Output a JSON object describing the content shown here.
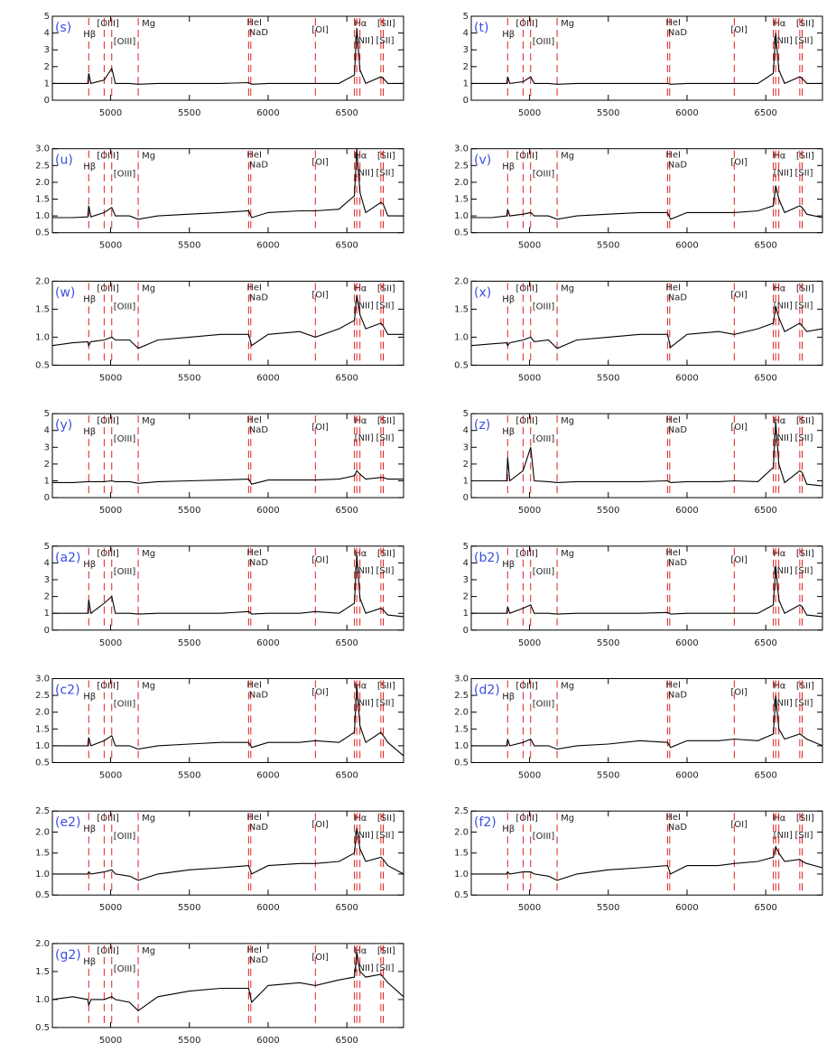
{
  "spectral_lines": [
    {
      "wavelength": 4861,
      "label": "Hβ"
    },
    {
      "wavelength": 4959,
      "label": "[OIII]"
    },
    {
      "wavelength": 5007,
      "label": "[OIII]"
    },
    {
      "wavelength": 5175,
      "label": "Mg"
    },
    {
      "wavelength": 5876,
      "label": "HeI"
    },
    {
      "wavelength": 5890,
      "label": "NaD"
    },
    {
      "wavelength": 6300,
      "label": "[OI]"
    },
    {
      "wavelength": 6548
    },
    {
      "wavelength": 6563,
      "label": "Hα"
    },
    {
      "wavelength": 6583,
      "label": "[NII]"
    },
    {
      "wavelength": 6716,
      "label": "[SII]"
    },
    {
      "wavelength": 6731,
      "label": "[SII]"
    }
  ],
  "chart_data": [
    {
      "type": "line",
      "label": "(s)",
      "xlim": [
        4630,
        6860
      ],
      "ylim": [
        0,
        5
      ],
      "xticks": [
        5000,
        5500,
        6000,
        6500
      ],
      "yticks": [
        0,
        1,
        2,
        3,
        4,
        5
      ],
      "x": [
        4630,
        4760,
        4855,
        4861,
        4875,
        4959,
        5007,
        5030,
        5120,
        5175,
        5300,
        5500,
        5700,
        5876,
        5895,
        6000,
        6200,
        6300,
        6450,
        6548,
        6563,
        6583,
        6620,
        6716,
        6731,
        6760,
        6860
      ],
      "values": [
        1.0,
        1.0,
        1.0,
        1.6,
        1.0,
        1.2,
        1.9,
        1.0,
        1.0,
        0.95,
        1.0,
        1.0,
        1.0,
        1.05,
        0.95,
        1.0,
        1.0,
        1.0,
        1.0,
        1.5,
        4.3,
        1.8,
        1.0,
        1.4,
        1.3,
        1.0,
        1.0
      ]
    },
    {
      "type": "line",
      "label": "(t)",
      "xlim": [
        4630,
        6860
      ],
      "ylim": [
        0,
        5
      ],
      "xticks": [
        5000,
        5500,
        6000,
        6500
      ],
      "yticks": [
        0,
        1,
        2,
        3,
        4,
        5
      ],
      "x": [
        4630,
        4760,
        4855,
        4861,
        4875,
        4959,
        5007,
        5030,
        5120,
        5175,
        5300,
        5500,
        5700,
        5876,
        5895,
        6000,
        6200,
        6300,
        6450,
        6548,
        6563,
        6583,
        6620,
        6716,
        6731,
        6760,
        6860
      ],
      "values": [
        1.0,
        1.0,
        1.0,
        1.4,
        1.0,
        1.1,
        1.4,
        1.0,
        1.0,
        0.95,
        1.0,
        1.0,
        1.0,
        1.0,
        0.95,
        1.0,
        1.0,
        1.0,
        1.0,
        1.6,
        4.0,
        1.8,
        1.0,
        1.4,
        1.3,
        1.0,
        1.0
      ]
    },
    {
      "type": "line",
      "label": "(u)",
      "xlim": [
        4630,
        6860
      ],
      "ylim": [
        0.5,
        3
      ],
      "xticks": [
        5000,
        5500,
        6000,
        6500
      ],
      "yticks": [
        0.5,
        {
          "value": 1,
          "label": "1.0"
        },
        1.5,
        {
          "value": 2,
          "label": "2.0"
        },
        2.5,
        {
          "value": 3,
          "label": "3.0"
        }
      ],
      "x": [
        4630,
        4760,
        4855,
        4861,
        4875,
        4959,
        5007,
        5030,
        5120,
        5175,
        5300,
        5500,
        5700,
        5876,
        5895,
        6000,
        6200,
        6300,
        6450,
        6548,
        6563,
        6583,
        6620,
        6716,
        6731,
        6760,
        6860
      ],
      "values": [
        0.95,
        0.95,
        0.97,
        1.3,
        0.97,
        1.1,
        1.25,
        1.0,
        1.0,
        0.9,
        1.0,
        1.05,
        1.1,
        1.15,
        0.95,
        1.1,
        1.15,
        1.15,
        1.2,
        1.6,
        3.0,
        1.7,
        1.1,
        1.4,
        1.35,
        1.0,
        1.0
      ]
    },
    {
      "type": "line",
      "label": "(v)",
      "xlim": [
        4630,
        6860
      ],
      "ylim": [
        0.5,
        3
      ],
      "xticks": [
        5000,
        5500,
        6000,
        6500
      ],
      "yticks": [
        0.5,
        {
          "value": 1,
          "label": "1.0"
        },
        1.5,
        {
          "value": 2,
          "label": "2.0"
        },
        2.5,
        {
          "value": 3,
          "label": "3.0"
        }
      ],
      "x": [
        4630,
        4760,
        4855,
        4861,
        4875,
        4959,
        5007,
        5030,
        5120,
        5175,
        5300,
        5500,
        5700,
        5876,
        5895,
        6000,
        6200,
        6300,
        6450,
        6548,
        6563,
        6583,
        6620,
        6716,
        6731,
        6760,
        6860
      ],
      "values": [
        0.95,
        0.95,
        1.0,
        1.2,
        1.0,
        1.05,
        1.1,
        1.0,
        1.0,
        0.9,
        1.0,
        1.05,
        1.1,
        1.1,
        0.9,
        1.1,
        1.1,
        1.1,
        1.15,
        1.3,
        1.9,
        1.5,
        1.1,
        1.3,
        1.25,
        1.05,
        0.95
      ]
    },
    {
      "type": "line",
      "label": "(w)",
      "xlim": [
        4630,
        6860
      ],
      "ylim": [
        0.5,
        2
      ],
      "xticks": [
        5000,
        5500,
        6000,
        6500
      ],
      "yticks": [
        0.5,
        {
          "value": 1,
          "label": "1.0"
        },
        1.5,
        {
          "value": 2,
          "label": "2.0"
        }
      ],
      "x": [
        4630,
        4760,
        4855,
        4861,
        4875,
        4959,
        5007,
        5030,
        5120,
        5175,
        5300,
        5500,
        5700,
        5876,
        5895,
        6000,
        6200,
        6300,
        6450,
        6548,
        6563,
        6583,
        6620,
        6716,
        6731,
        6760,
        6860
      ],
      "values": [
        0.85,
        0.9,
        0.92,
        0.85,
        0.92,
        0.95,
        1.0,
        0.95,
        0.95,
        0.8,
        0.95,
        1.0,
        1.05,
        1.05,
        0.85,
        1.05,
        1.1,
        1.0,
        1.15,
        1.3,
        1.75,
        1.4,
        1.15,
        1.25,
        1.2,
        1.05,
        1.05
      ]
    },
    {
      "type": "line",
      "label": "(x)",
      "xlim": [
        4630,
        6860
      ],
      "ylim": [
        0.5,
        2
      ],
      "xticks": [
        5000,
        5500,
        6000,
        6500
      ],
      "yticks": [
        0.5,
        {
          "value": 1,
          "label": "1.0"
        },
        1.5,
        {
          "value": 2,
          "label": "2.0"
        }
      ],
      "x": [
        4630,
        4760,
        4855,
        4861,
        4875,
        4959,
        5007,
        5030,
        5120,
        5175,
        5300,
        5500,
        5700,
        5876,
        5895,
        6000,
        6200,
        6300,
        6450,
        6548,
        6563,
        6583,
        6620,
        6716,
        6731,
        6760,
        6860
      ],
      "values": [
        0.85,
        0.88,
        0.9,
        0.85,
        0.9,
        0.95,
        1.0,
        0.92,
        0.95,
        0.8,
        0.95,
        1.0,
        1.05,
        1.05,
        0.82,
        1.05,
        1.1,
        1.05,
        1.15,
        1.25,
        1.55,
        1.35,
        1.1,
        1.25,
        1.2,
        1.1,
        1.15
      ]
    },
    {
      "type": "line",
      "label": "(y)",
      "xlim": [
        4630,
        6860
      ],
      "ylim": [
        0,
        5
      ],
      "xticks": [
        5000,
        5500,
        6000,
        6500
      ],
      "yticks": [
        0,
        1,
        2,
        3,
        4,
        5
      ],
      "x": [
        4630,
        4760,
        4855,
        4861,
        4875,
        4959,
        5007,
        5030,
        5120,
        5175,
        5300,
        5500,
        5700,
        5876,
        5895,
        6000,
        6200,
        6300,
        6450,
        6548,
        6563,
        6583,
        6620,
        6716,
        6731,
        6760,
        6860
      ],
      "values": [
        0.9,
        0.9,
        0.95,
        0.95,
        0.95,
        0.95,
        1.0,
        0.95,
        0.95,
        0.85,
        0.95,
        1.0,
        1.05,
        1.1,
        0.8,
        1.05,
        1.05,
        1.05,
        1.1,
        1.3,
        1.6,
        1.4,
        1.1,
        1.2,
        1.2,
        1.1,
        1.1
      ]
    },
    {
      "type": "line",
      "label": "(z)",
      "xlim": [
        4630,
        6860
      ],
      "ylim": [
        0,
        5
      ],
      "xticks": [
        5000,
        5500,
        6000,
        6500
      ],
      "yticks": [
        0,
        1,
        2,
        3,
        4,
        5
      ],
      "x": [
        4630,
        4760,
        4855,
        4861,
        4875,
        4959,
        5007,
        5030,
        5120,
        5175,
        5300,
        5500,
        5700,
        5876,
        5895,
        6000,
        6200,
        6300,
        6450,
        6548,
        6563,
        6583,
        6620,
        6716,
        6731,
        6760,
        6860
      ],
      "values": [
        1.0,
        1.0,
        1.0,
        2.4,
        1.0,
        1.6,
        3.0,
        1.0,
        0.95,
        0.9,
        0.95,
        0.95,
        0.95,
        1.0,
        0.9,
        0.95,
        0.95,
        1.0,
        0.95,
        1.8,
        4.5,
        2.0,
        0.9,
        1.6,
        1.5,
        0.8,
        0.7
      ]
    },
    {
      "type": "line",
      "label": "(a2)",
      "xlim": [
        4630,
        6860
      ],
      "ylim": [
        0,
        5
      ],
      "xticks": [
        5000,
        5500,
        6000,
        6500
      ],
      "yticks": [
        0,
        1,
        2,
        3,
        4,
        5
      ],
      "x": [
        4630,
        4760,
        4855,
        4861,
        4875,
        4959,
        5007,
        5030,
        5120,
        5175,
        5300,
        5500,
        5700,
        5876,
        5895,
        6000,
        6200,
        6300,
        6450,
        6548,
        6563,
        6583,
        6620,
        6716,
        6731,
        6760,
        6860
      ],
      "values": [
        1.0,
        1.0,
        1.0,
        1.8,
        1.0,
        1.6,
        2.0,
        1.0,
        1.0,
        0.95,
        1.0,
        1.0,
        1.0,
        1.1,
        0.95,
        1.0,
        1.0,
        1.1,
        1.0,
        1.6,
        4.5,
        1.9,
        1.0,
        1.3,
        1.2,
        0.9,
        0.8
      ]
    },
    {
      "type": "line",
      "label": "(b2)",
      "xlim": [
        4630,
        6860
      ],
      "ylim": [
        0,
        5
      ],
      "xticks": [
        5000,
        5500,
        6000,
        6500
      ],
      "yticks": [
        0,
        1,
        2,
        3,
        4,
        5
      ],
      "x": [
        4630,
        4760,
        4855,
        4861,
        4875,
        4959,
        5007,
        5030,
        5120,
        5175,
        5300,
        5500,
        5700,
        5876,
        5895,
        6000,
        6200,
        6300,
        6450,
        6548,
        6563,
        6583,
        6620,
        6716,
        6731,
        6760,
        6860
      ],
      "values": [
        1.0,
        1.0,
        1.0,
        1.4,
        1.0,
        1.3,
        1.5,
        1.0,
        1.0,
        0.95,
        1.0,
        1.0,
        1.0,
        1.05,
        0.95,
        1.0,
        1.0,
        1.0,
        1.0,
        1.5,
        3.8,
        1.8,
        1.0,
        1.5,
        1.4,
        0.9,
        0.8
      ]
    },
    {
      "type": "line",
      "label": "(c2)",
      "xlim": [
        4630,
        6860
      ],
      "ylim": [
        0.5,
        3
      ],
      "xticks": [
        5000,
        5500,
        6000,
        6500
      ],
      "yticks": [
        0.5,
        {
          "value": 1,
          "label": "1.0"
        },
        1.5,
        {
          "value": 2,
          "label": "2.0"
        },
        2.5,
        {
          "value": 3,
          "label": "3.0"
        }
      ],
      "x": [
        4630,
        4760,
        4855,
        4861,
        4875,
        4959,
        5007,
        5030,
        5120,
        5175,
        5300,
        5500,
        5700,
        5876,
        5895,
        6000,
        6200,
        6300,
        6450,
        6548,
        6563,
        6583,
        6620,
        6716,
        6731,
        6760,
        6860
      ],
      "values": [
        1.0,
        1.0,
        1.0,
        1.25,
        1.0,
        1.15,
        1.3,
        1.0,
        1.0,
        0.9,
        1.0,
        1.05,
        1.1,
        1.1,
        0.95,
        1.1,
        1.1,
        1.15,
        1.1,
        1.4,
        2.8,
        1.6,
        1.1,
        1.4,
        1.3,
        1.1,
        0.7
      ]
    },
    {
      "type": "line",
      "label": "(d2)",
      "xlim": [
        4630,
        6860
      ],
      "ylim": [
        0.5,
        3
      ],
      "xticks": [
        5000,
        5500,
        6000,
        6500
      ],
      "yticks": [
        0.5,
        {
          "value": 1,
          "label": "1.0"
        },
        1.5,
        {
          "value": 2,
          "label": "2.0"
        },
        2.5,
        {
          "value": 3,
          "label": "3.0"
        }
      ],
      "x": [
        4630,
        4760,
        4855,
        4861,
        4875,
        4959,
        5007,
        5030,
        5120,
        5175,
        5300,
        5500,
        5700,
        5876,
        5895,
        6000,
        6200,
        6300,
        6450,
        6548,
        6563,
        6583,
        6620,
        6716,
        6731,
        6760,
        6860
      ],
      "values": [
        1.0,
        1.0,
        1.0,
        1.2,
        1.0,
        1.1,
        1.2,
        1.0,
        1.0,
        0.9,
        1.0,
        1.05,
        1.15,
        1.1,
        0.95,
        1.15,
        1.15,
        1.2,
        1.15,
        1.35,
        2.5,
        1.5,
        1.2,
        1.35,
        1.3,
        1.2,
        1.0
      ]
    },
    {
      "type": "line",
      "label": "(e2)",
      "xlim": [
        4630,
        6860
      ],
      "ylim": [
        0.5,
        2.5
      ],
      "xticks": [
        5000,
        5500,
        6000,
        6500
      ],
      "yticks": [
        0.5,
        {
          "value": 1,
          "label": "1.0"
        },
        1.5,
        {
          "value": 2,
          "label": "2.0"
        },
        2.5
      ],
      "x": [
        4630,
        4760,
        4855,
        4861,
        4875,
        4959,
        5007,
        5030,
        5120,
        5175,
        5300,
        5500,
        5700,
        5876,
        5895,
        6000,
        6200,
        6300,
        6450,
        6548,
        6563,
        6583,
        6620,
        6716,
        6731,
        6760,
        6860
      ],
      "values": [
        1.0,
        1.0,
        1.0,
        1.05,
        1.0,
        1.05,
        1.1,
        1.0,
        0.95,
        0.85,
        1.0,
        1.1,
        1.15,
        1.2,
        1.0,
        1.2,
        1.25,
        1.25,
        1.3,
        1.5,
        2.1,
        1.6,
        1.3,
        1.4,
        1.35,
        1.2,
        1.0
      ]
    },
    {
      "type": "line",
      "label": "(f2)",
      "xlim": [
        4630,
        6860
      ],
      "ylim": [
        0.5,
        2.5
      ],
      "xticks": [
        5000,
        5500,
        6000,
        6500
      ],
      "yticks": [
        0.5,
        {
          "value": 1,
          "label": "1.0"
        },
        1.5,
        {
          "value": 2,
          "label": "2.0"
        },
        2.5
      ],
      "x": [
        4630,
        4760,
        4855,
        4861,
        4875,
        4959,
        5007,
        5030,
        5120,
        5175,
        5300,
        5500,
        5700,
        5876,
        5895,
        6000,
        6200,
        6300,
        6450,
        6548,
        6563,
        6583,
        6620,
        6716,
        6731,
        6760,
        6860
      ],
      "values": [
        1.0,
        1.0,
        1.0,
        1.05,
        1.0,
        1.05,
        1.05,
        1.0,
        0.95,
        0.85,
        1.0,
        1.1,
        1.15,
        1.2,
        1.0,
        1.2,
        1.2,
        1.25,
        1.3,
        1.4,
        1.65,
        1.5,
        1.3,
        1.35,
        1.3,
        1.25,
        1.15
      ]
    },
    {
      "type": "line",
      "label": "(g2)",
      "xlim": [
        4630,
        6860
      ],
      "ylim": [
        0.5,
        2
      ],
      "xticks": [
        5000,
        5500,
        6000,
        6500
      ],
      "yticks": [
        0.5,
        {
          "value": 1,
          "label": "1.0"
        },
        1.5,
        {
          "value": 2,
          "label": "2.0"
        }
      ],
      "x": [
        4630,
        4760,
        4855,
        4861,
        4875,
        4959,
        5007,
        5030,
        5120,
        5175,
        5300,
        5500,
        5700,
        5876,
        5895,
        6000,
        6200,
        6300,
        6450,
        6548,
        6563,
        6583,
        6620,
        6716,
        6731,
        6760,
        6860
      ],
      "values": [
        1.0,
        1.05,
        1.0,
        0.9,
        1.0,
        1.0,
        1.05,
        1.0,
        0.95,
        0.8,
        1.05,
        1.15,
        1.2,
        1.2,
        0.95,
        1.25,
        1.3,
        1.25,
        1.35,
        1.4,
        1.85,
        1.5,
        1.4,
        1.45,
        1.4,
        1.3,
        1.05
      ]
    }
  ]
}
